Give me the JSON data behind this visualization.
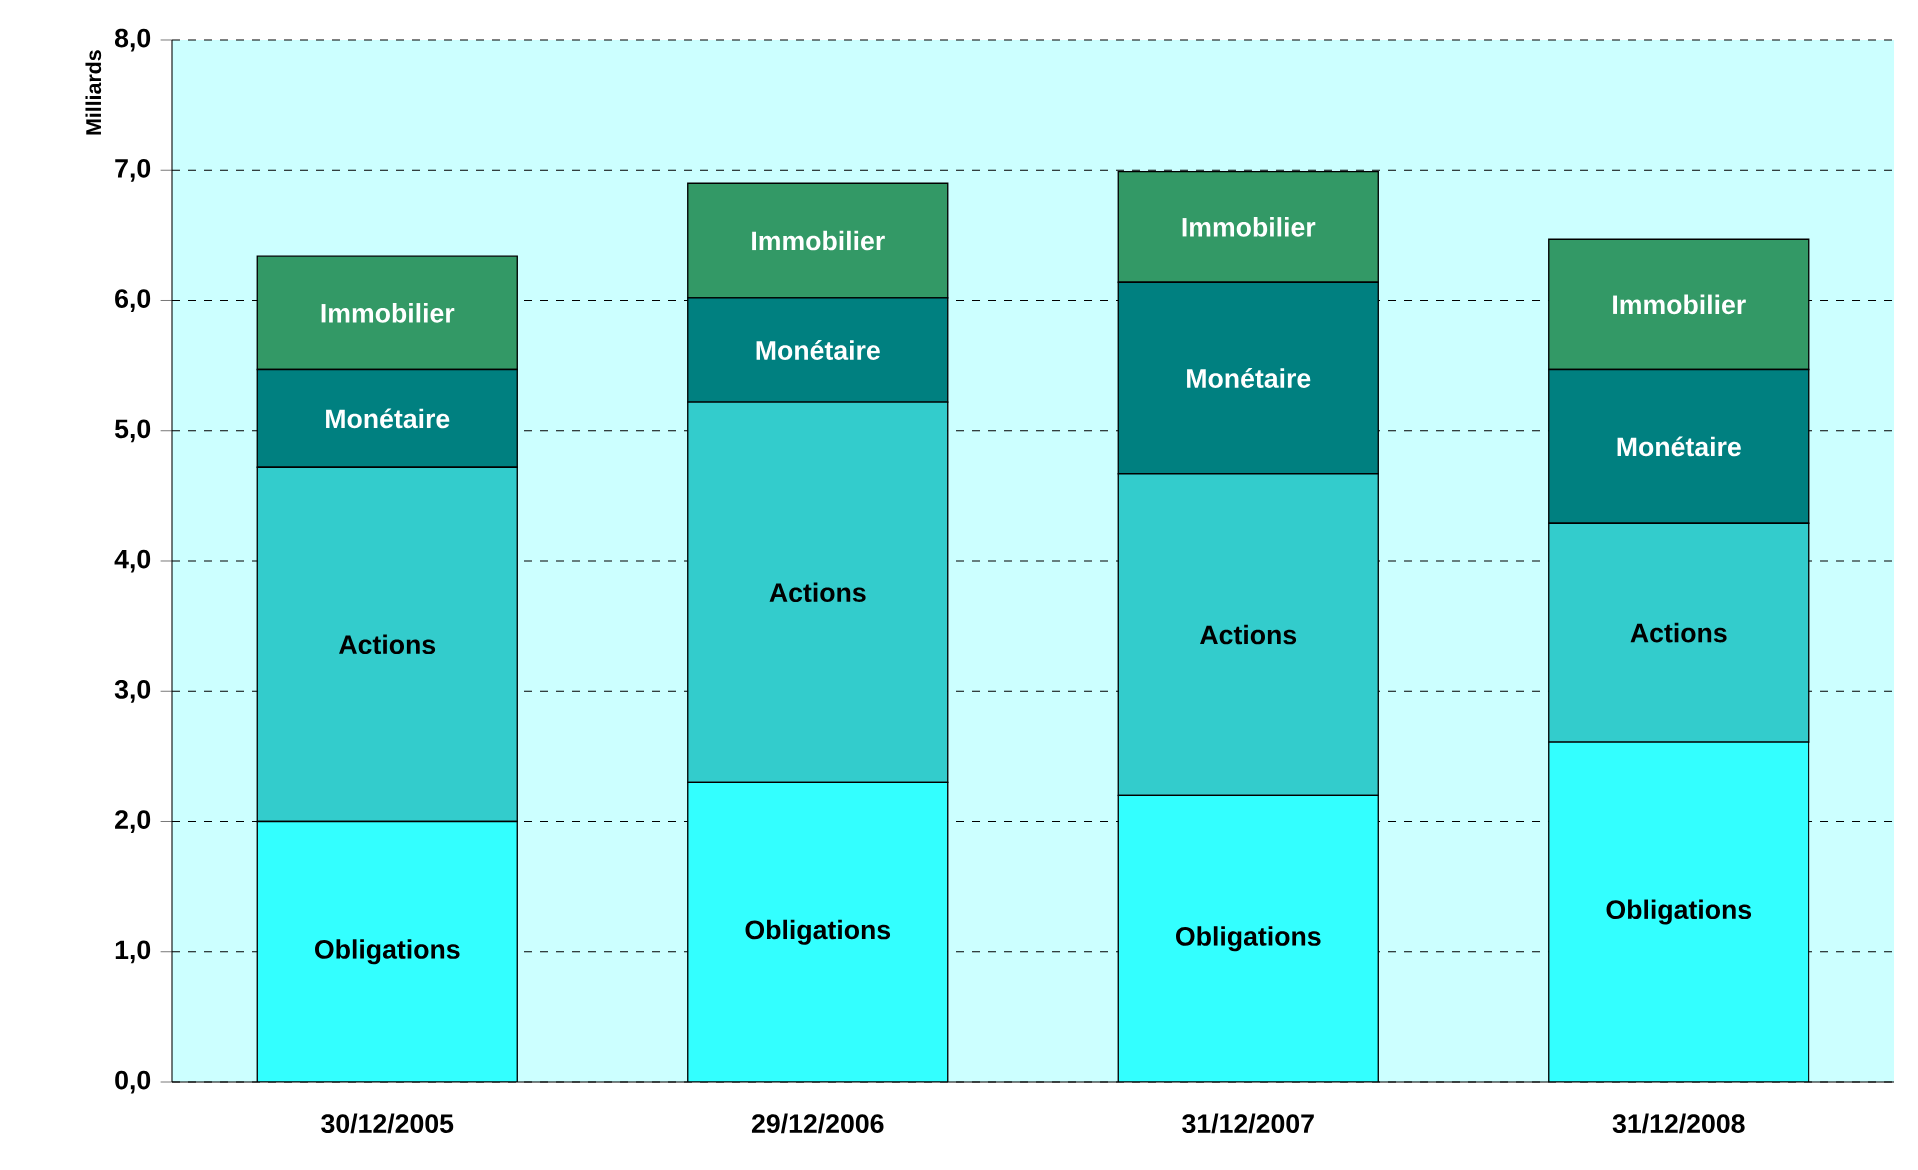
{
  "chart_data": {
    "type": "bar",
    "stacked": true,
    "ylabel": "Milliards",
    "categories": [
      "30/12/2005",
      "29/12/2006",
      "31/12/2007",
      "31/12/2008"
    ],
    "series": [
      {
        "name": "Obligations",
        "color": "#33ffff",
        "values": [
          2.0,
          2.3,
          2.2,
          2.61
        ]
      },
      {
        "name": "Actions",
        "color": "#33cccc",
        "values": [
          2.72,
          2.92,
          2.47,
          1.68
        ]
      },
      {
        "name": "Monétaire",
        "color": "#008080",
        "values": [
          0.75,
          0.8,
          1.47,
          1.18
        ]
      },
      {
        "name": "Immobilier",
        "color": "#339966",
        "values": [
          0.87,
          0.88,
          0.85,
          1.0
        ]
      }
    ],
    "ylim": [
      0,
      8
    ],
    "yticks": [
      {
        "value": 0,
        "label": "0,0"
      },
      {
        "value": 1,
        "label": "1,0"
      },
      {
        "value": 2,
        "label": "2,0"
      },
      {
        "value": 3,
        "label": "3,0"
      },
      {
        "value": 4,
        "label": "4,0"
      },
      {
        "value": 5,
        "label": "5,0"
      },
      {
        "value": 6,
        "label": "6,0"
      },
      {
        "value": 7,
        "label": "7,0"
      },
      {
        "value": 8,
        "label": "8,0"
      }
    ],
    "grid": "y",
    "legend": false
  }
}
